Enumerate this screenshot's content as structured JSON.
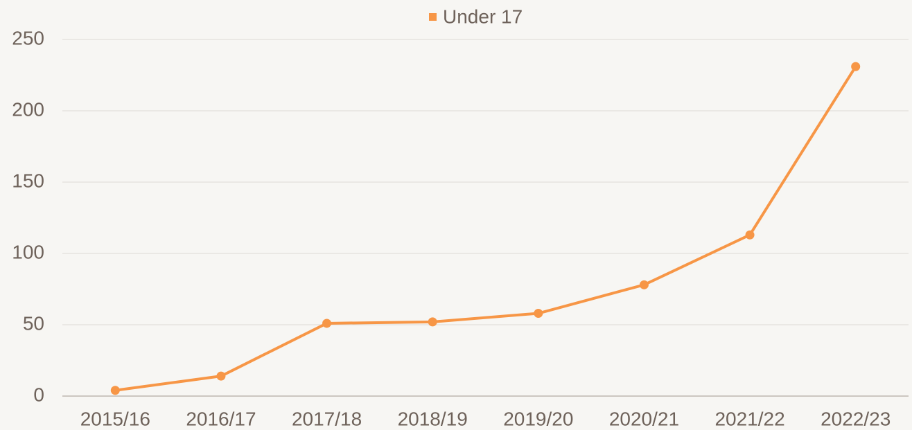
{
  "chart_data": {
    "type": "line",
    "categories": [
      "2015/16",
      "2016/17",
      "2017/18",
      "2018/19",
      "2019/20",
      "2020/21",
      "2021/22",
      "2022/23"
    ],
    "series": [
      {
        "name": "Under 17",
        "color": "#f79646",
        "values": [
          4,
          14,
          51,
          52,
          58,
          78,
          113,
          231
        ]
      }
    ],
    "ylim": [
      0,
      250
    ],
    "yticks": [
      0,
      50,
      100,
      150,
      200,
      250
    ],
    "grid": true,
    "legend": "top"
  }
}
